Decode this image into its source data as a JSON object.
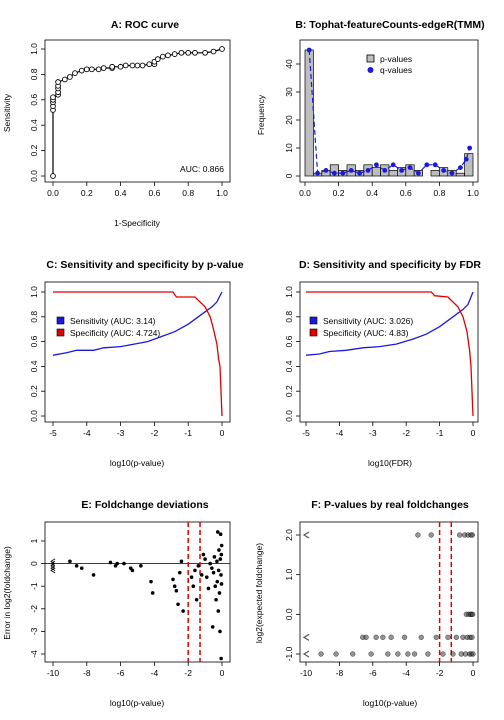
{
  "chart_data": [
    {
      "id": "A",
      "type": "scatter",
      "title": "A: ROC curve",
      "xlabel": "1-Specificity",
      "ylabel": "Sensitivity",
      "xlim": [
        0,
        1
      ],
      "ylim": [
        0,
        1
      ],
      "xticks": [
        "0.0",
        "0.2",
        "0.4",
        "0.6",
        "0.8",
        "1.0"
      ],
      "yticks": [
        "0.0",
        "0.2",
        "0.4",
        "0.6",
        "0.8",
        "1.0"
      ],
      "annotation": "AUC: 0.866",
      "points": [
        [
          0,
          0.0
        ],
        [
          0,
          0.52
        ],
        [
          0,
          0.55
        ],
        [
          0,
          0.58
        ],
        [
          0,
          0.6
        ],
        [
          0,
          0.62
        ],
        [
          0.03,
          0.64
        ],
        [
          0.03,
          0.66
        ],
        [
          0.03,
          0.69
        ],
        [
          0.03,
          0.71
        ],
        [
          0.03,
          0.74
        ],
        [
          0.07,
          0.76
        ],
        [
          0.1,
          0.78
        ],
        [
          0.13,
          0.81
        ],
        [
          0.17,
          0.83
        ],
        [
          0.2,
          0.84
        ],
        [
          0.23,
          0.84
        ],
        [
          0.27,
          0.84
        ],
        [
          0.3,
          0.85
        ],
        [
          0.35,
          0.85
        ],
        [
          0.35,
          0.86
        ],
        [
          0.4,
          0.86
        ],
        [
          0.43,
          0.87
        ],
        [
          0.47,
          0.87
        ],
        [
          0.5,
          0.87
        ],
        [
          0.53,
          0.87
        ],
        [
          0.57,
          0.88
        ],
        [
          0.6,
          0.88
        ],
        [
          0.6,
          0.9
        ],
        [
          0.62,
          0.92
        ],
        [
          0.65,
          0.94
        ],
        [
          0.68,
          0.95
        ],
        [
          0.72,
          0.96
        ],
        [
          0.76,
          0.97
        ],
        [
          0.8,
          0.97
        ],
        [
          0.84,
          0.97
        ],
        [
          0.9,
          0.97
        ],
        [
          0.95,
          0.98
        ],
        [
          1,
          1.0
        ]
      ]
    },
    {
      "id": "B",
      "type": "bar",
      "title": "B: Tophat-featureCounts-edgeR(TMM)",
      "xlabel": "",
      "ylabel": "Frequency",
      "xlim": [
        0,
        1
      ],
      "ylim": [
        0,
        45
      ],
      "xticks": [
        "0.0",
        "0.2",
        "0.4",
        "0.6",
        "0.8",
        "1.0"
      ],
      "yticks": [
        "0",
        "10",
        "20",
        "30",
        "40"
      ],
      "legend": [
        "p-values",
        "q-values"
      ],
      "bins": [
        0,
        0.05,
        0.1,
        0.15,
        0.2,
        0.25,
        0.3,
        0.35,
        0.4,
        0.45,
        0.5,
        0.55,
        0.6,
        0.65,
        0.7,
        0.75,
        0.8,
        0.85,
        0.9,
        0.95,
        1
      ],
      "p_counts": [
        45,
        1,
        2,
        4,
        2,
        4,
        2,
        4,
        3,
        4,
        2,
        3,
        4,
        2,
        0,
        2,
        3,
        2,
        1,
        8
      ],
      "q_points": [
        [
          0.025,
          45
        ],
        [
          0.075,
          1
        ],
        [
          0.125,
          2
        ],
        [
          0.175,
          1
        ],
        [
          0.225,
          1
        ],
        [
          0.275,
          2
        ],
        [
          0.325,
          1
        ],
        [
          0.375,
          2
        ],
        [
          0.425,
          4
        ],
        [
          0.475,
          2
        ],
        [
          0.525,
          4
        ],
        [
          0.575,
          2
        ],
        [
          0.625,
          3
        ],
        [
          0.675,
          1
        ],
        [
          0.725,
          4
        ],
        [
          0.775,
          4
        ],
        [
          0.825,
          2
        ],
        [
          0.875,
          1
        ],
        [
          0.925,
          3
        ],
        [
          0.96,
          6
        ],
        [
          0.98,
          10
        ]
      ]
    },
    {
      "id": "C",
      "type": "line",
      "title": "C: Sensitivity and specificity by p-value",
      "xlabel": "log10(p-value)",
      "ylabel": "",
      "xlim": [
        -5,
        0
      ],
      "ylim": [
        0,
        1
      ],
      "xticks": [
        "-5",
        "-4",
        "-3",
        "-2",
        "-1",
        "0"
      ],
      "yticks": [
        "0.0",
        "0.2",
        "0.4",
        "0.6",
        "0.8",
        "1.0"
      ],
      "series": [
        {
          "name": "Sensitivity (AUC: 3.14)",
          "color": "#1a1adf",
          "points": [
            [
              -5,
              0.49
            ],
            [
              -4.6,
              0.51
            ],
            [
              -4.3,
              0.53
            ],
            [
              -3.8,
              0.53
            ],
            [
              -3.5,
              0.55
            ],
            [
              -3.0,
              0.56
            ],
            [
              -2.6,
              0.58
            ],
            [
              -2.2,
              0.6
            ],
            [
              -1.8,
              0.64
            ],
            [
              -1.4,
              0.68
            ],
            [
              -1.0,
              0.74
            ],
            [
              -0.6,
              0.82
            ],
            [
              -0.3,
              0.88
            ],
            [
              -0.15,
              0.92
            ],
            [
              -0.08,
              0.96
            ],
            [
              0,
              1.0
            ]
          ]
        },
        {
          "name": "Specificity (AUC: 4.724)",
          "color": "#e00000",
          "points": [
            [
              -5,
              1.0
            ],
            [
              -1.45,
              1.0
            ],
            [
              -1.35,
              0.96
            ],
            [
              -0.8,
              0.96
            ],
            [
              -0.5,
              0.88
            ],
            [
              -0.35,
              0.8
            ],
            [
              -0.25,
              0.7
            ],
            [
              -0.15,
              0.58
            ],
            [
              -0.1,
              0.46
            ],
            [
              -0.06,
              0.4
            ],
            [
              -0.03,
              0.2
            ],
            [
              0,
              0.0
            ]
          ]
        }
      ]
    },
    {
      "id": "D",
      "type": "line",
      "title": "D: Sensitivity and specificity by FDR",
      "xlabel": "log10(FDR)",
      "ylabel": "",
      "xlim": [
        -5,
        0
      ],
      "ylim": [
        0,
        1
      ],
      "xticks": [
        "-5",
        "-4",
        "-3",
        "-2",
        "-1",
        "0"
      ],
      "yticks": [
        "0.0",
        "0.2",
        "0.4",
        "0.6",
        "0.8",
        "1.0"
      ],
      "series": [
        {
          "name": "Sensitivity (AUC: 3.026)",
          "color": "#1a1adf",
          "points": [
            [
              -5,
              0.49
            ],
            [
              -4.6,
              0.5
            ],
            [
              -4.3,
              0.52
            ],
            [
              -3.8,
              0.53
            ],
            [
              -3.3,
              0.55
            ],
            [
              -2.8,
              0.56
            ],
            [
              -2.3,
              0.58
            ],
            [
              -1.8,
              0.62
            ],
            [
              -1.4,
              0.66
            ],
            [
              -1.0,
              0.72
            ],
            [
              -0.6,
              0.8
            ],
            [
              -0.3,
              0.86
            ],
            [
              -0.15,
              0.9
            ],
            [
              -0.06,
              0.96
            ],
            [
              0,
              1.0
            ]
          ]
        },
        {
          "name": "Specificity (AUC: 4.83)",
          "color": "#e00000",
          "points": [
            [
              -5,
              1.0
            ],
            [
              -1.25,
              1.0
            ],
            [
              -1.15,
              0.97
            ],
            [
              -0.75,
              0.96
            ],
            [
              -0.45,
              0.88
            ],
            [
              -0.3,
              0.8
            ],
            [
              -0.18,
              0.68
            ],
            [
              -0.1,
              0.52
            ],
            [
              -0.06,
              0.4
            ],
            [
              -0.03,
              0.2
            ],
            [
              0,
              0.0
            ]
          ]
        }
      ]
    },
    {
      "id": "E",
      "type": "scatter",
      "title": "E: Foldchange deviations",
      "xlabel": "log10(p-value)",
      "ylabel": "Error in log2(foldchange)",
      "xlim": [
        -10,
        0
      ],
      "ylim": [
        -4,
        1
      ],
      "xticks": [
        "-10",
        "-8",
        "-6",
        "-4",
        "-2",
        "0"
      ],
      "yticks": [
        "-4",
        "-3",
        "-2",
        "-1",
        "0",
        "1"
      ],
      "hline": 0,
      "vlines": [
        -2,
        -1.3
      ],
      "points": [
        [
          -10,
          0.1
        ],
        [
          -10,
          0.0
        ],
        [
          -10,
          -0.1
        ],
        [
          -10,
          -0.2
        ],
        [
          -10,
          -0.3
        ],
        [
          -9,
          0.1
        ],
        [
          -8.6,
          -0.1
        ],
        [
          -8.3,
          -0.2
        ],
        [
          -7.6,
          -0.5
        ],
        [
          -6.6,
          0.05
        ],
        [
          -6.3,
          -0.1
        ],
        [
          -6.2,
          0.0
        ],
        [
          -5.8,
          0.0
        ],
        [
          -5.4,
          -0.2
        ],
        [
          -5.3,
          -0.3
        ],
        [
          -4.8,
          -0.1
        ],
        [
          -4.2,
          -0.8
        ],
        [
          -4.1,
          -1.3
        ],
        [
          -2.9,
          -0.7
        ],
        [
          -2.8,
          -1.0
        ],
        [
          -2.7,
          -1.2
        ],
        [
          -2.6,
          -1.8
        ],
        [
          -2.5,
          -0.4
        ],
        [
          -2.4,
          0.1
        ],
        [
          -2.3,
          -2.1
        ],
        [
          -1.8,
          -0.6
        ],
        [
          -1.7,
          -1.0
        ],
        [
          -1.6,
          -0.3
        ],
        [
          -1.5,
          -1.6
        ],
        [
          -1.4,
          -0.1
        ],
        [
          -1.2,
          -0.5
        ],
        [
          -1.1,
          0.4
        ],
        [
          -1.0,
          0.2
        ],
        [
          -0.9,
          -0.6
        ],
        [
          -0.8,
          -1.1
        ],
        [
          -0.7,
          0.0
        ],
        [
          -0.6,
          -0.2
        ],
        [
          -0.55,
          -2.8
        ],
        [
          -0.5,
          -0.4
        ],
        [
          -0.45,
          0.3
        ],
        [
          -0.4,
          -1.0
        ],
        [
          -0.35,
          -1.6
        ],
        [
          -0.3,
          0.1
        ],
        [
          -0.28,
          -0.8
        ],
        [
          -0.25,
          1.4
        ],
        [
          -0.22,
          -2.1
        ],
        [
          -0.2,
          -0.3
        ],
        [
          -0.18,
          0.6
        ],
        [
          -0.15,
          -1.3
        ],
        [
          -0.12,
          -3.0
        ],
        [
          -0.1,
          0.2
        ],
        [
          -0.08,
          1.3
        ],
        [
          -0.06,
          -0.5
        ],
        [
          -0.05,
          -4.2
        ],
        [
          -0.04,
          0.4
        ],
        [
          -0.03,
          -0.9
        ],
        [
          -0.02,
          0.8
        ]
      ]
    },
    {
      "id": "F",
      "type": "scatter",
      "title": "F: P-values by real foldchanges",
      "xlabel": "log10(p-value)",
      "ylabel": "log2(expected foldchange)",
      "xlim": [
        -10,
        0
      ],
      "ylim": [
        -1,
        2
      ],
      "xticks": [
        "-10",
        "-8",
        "-6",
        "-4",
        "-2",
        "0"
      ],
      "yticks": [
        "-1.0",
        "0.0",
        "1.0",
        "2.0"
      ],
      "vlines": [
        -2,
        -1.3
      ],
      "points": [
        [
          -10,
          2.0
        ],
        [
          -10,
          -0.58
        ],
        [
          -10,
          -1.0
        ],
        [
          -9.1,
          -1.0
        ],
        [
          -8.2,
          -1.0
        ],
        [
          -7.2,
          -1.0
        ],
        [
          -6.6,
          -0.58
        ],
        [
          -6.4,
          -0.58
        ],
        [
          -6.1,
          -1.0
        ],
        [
          -5.8,
          -0.58
        ],
        [
          -5.4,
          -0.58
        ],
        [
          -5.1,
          -1.0
        ],
        [
          -4.9,
          -0.58
        ],
        [
          -4.5,
          -1.0
        ],
        [
          -4.1,
          -0.58
        ],
        [
          -3.9,
          -1.0
        ],
        [
          -3.5,
          -1.0
        ],
        [
          -3.3,
          2.0
        ],
        [
          -3.1,
          -0.58
        ],
        [
          -2.7,
          -1.0
        ],
        [
          -2.5,
          2.0
        ],
        [
          -2.2,
          -0.58
        ],
        [
          -1.8,
          -1.0
        ],
        [
          -1.5,
          -0.58
        ],
        [
          -1.2,
          -1.0
        ],
        [
          -1.0,
          -0.58
        ],
        [
          -0.8,
          2.0
        ],
        [
          -0.7,
          -1.0
        ],
        [
          -0.6,
          -0.58
        ],
        [
          -0.5,
          2.0
        ],
        [
          -0.45,
          -1.0
        ],
        [
          -0.4,
          0.0
        ],
        [
          -0.35,
          -0.58
        ],
        [
          -0.3,
          2.0
        ],
        [
          -0.25,
          0.0
        ],
        [
          -0.2,
          -1.0
        ],
        [
          -0.18,
          -0.58
        ],
        [
          -0.15,
          0.0
        ],
        [
          -0.12,
          2.0
        ],
        [
          -0.1,
          -1.0
        ],
        [
          -0.08,
          0.0
        ],
        [
          -0.06,
          -0.58
        ],
        [
          -0.04,
          2.0
        ],
        [
          -0.02,
          0.0
        ],
        [
          0,
          -1.0
        ]
      ]
    }
  ]
}
